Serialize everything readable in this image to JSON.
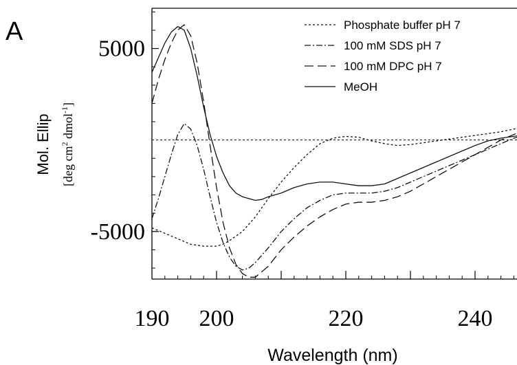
{
  "panel_label": "A",
  "chart_data": {
    "type": "line",
    "xlabel": "Wavelength (nm)",
    "ylabel_line1": "Mol. Ellip",
    "ylabel_line2_prefix": "[deg cm",
    "ylabel_line2_sup1": "2",
    "ylabel_line2_mid": " dmol",
    "ylabel_line2_sup2": "-1",
    "ylabel_line2_suffix": "]",
    "xlim": [
      190,
      250
    ],
    "ylim": [
      -7600,
      7200
    ],
    "x_tick_labels": [
      "190",
      "200",
      "220",
      "240"
    ],
    "x_major_ticks": [
      200,
      210,
      220,
      230,
      240
    ],
    "y_tick_labels": [
      "5000",
      "-5000"
    ],
    "y_major_ticks": [
      5000,
      -5000
    ],
    "zero_reference_line": true,
    "legend_position": "top-right",
    "series": [
      {
        "name": "Phosphate buffer pH 7",
        "dash": "dotted",
        "x": [
          190,
          192,
          194,
          196,
          198,
          200,
          201,
          202,
          204,
          206,
          208,
          210,
          212,
          214,
          216,
          218,
          220,
          222,
          224,
          226,
          228,
          230,
          232,
          234,
          236,
          238,
          240,
          242,
          244,
          246,
          248,
          250
        ],
        "y": [
          -4800,
          -5100,
          -5400,
          -5700,
          -5800,
          -5800,
          -5700,
          -5500,
          -5000,
          -4200,
          -3200,
          -2300,
          -1500,
          -800,
          -200,
          100,
          200,
          150,
          -50,
          -200,
          -300,
          -250,
          -150,
          -50,
          50,
          150,
          250,
          350,
          450,
          600,
          700,
          800
        ]
      },
      {
        "name": "100 mM SDS pH 7",
        "dash": "dash-dot",
        "x": [
          190,
          191,
          192,
          193,
          194,
          195,
          196,
          197,
          198,
          199,
          200,
          201,
          202,
          203,
          204,
          205,
          206,
          208,
          210,
          212,
          214,
          216,
          218,
          220,
          222,
          224,
          226,
          228,
          230,
          232,
          234,
          236,
          238,
          240,
          242,
          244,
          246,
          248,
          250
        ],
        "y": [
          -4300,
          -3200,
          -2000,
          -800,
          300,
          900,
          600,
          -300,
          -1600,
          -3100,
          -4500,
          -5600,
          -6400,
          -6900,
          -7100,
          -7000,
          -6700,
          -5900,
          -5000,
          -4300,
          -3700,
          -3300,
          -3000,
          -2900,
          -2900,
          -2900,
          -2800,
          -2600,
          -2300,
          -2000,
          -1700,
          -1400,
          -1100,
          -800,
          -500,
          -200,
          100,
          300,
          500
        ]
      },
      {
        "name": "100 mM DPC pH 7",
        "dash": "long-dash",
        "x": [
          190,
          191,
          192,
          193,
          194,
          195,
          196,
          197,
          198,
          199,
          200,
          201,
          202,
          203,
          204,
          205,
          206,
          208,
          210,
          212,
          214,
          216,
          218,
          220,
          222,
          224,
          226,
          228,
          230,
          232,
          234,
          236,
          238,
          240,
          242,
          244,
          246,
          248,
          250
        ],
        "y": [
          2000,
          3300,
          4400,
          5300,
          6000,
          6300,
          5700,
          4200,
          2100,
          -300,
          -2600,
          -4500,
          -5900,
          -6800,
          -7300,
          -7500,
          -7500,
          -6900,
          -6000,
          -5300,
          -4700,
          -4200,
          -3800,
          -3500,
          -3400,
          -3400,
          -3300,
          -3100,
          -2800,
          -2400,
          -2000,
          -1600,
          -1200,
          -800,
          -400,
          0,
          300,
          600,
          900
        ]
      },
      {
        "name": "MeOH",
        "dash": "solid",
        "x": [
          190,
          191,
          192,
          193,
          194,
          195,
          196,
          197,
          198,
          199,
          200,
          201,
          202,
          203,
          204,
          205,
          206,
          207,
          208,
          210,
          212,
          214,
          216,
          218,
          220,
          222,
          224,
          226,
          228,
          230,
          232,
          234,
          236,
          238,
          240,
          242,
          244,
          246,
          248,
          250
        ],
        "y": [
          3700,
          4500,
          5300,
          5900,
          6200,
          6000,
          5000,
          3500,
          1800,
          300,
          -900,
          -1800,
          -2500,
          -2900,
          -3100,
          -3200,
          -3300,
          -3250,
          -3100,
          -2900,
          -2600,
          -2400,
          -2300,
          -2300,
          -2400,
          -2500,
          -2500,
          -2400,
          -2100,
          -1800,
          -1500,
          -1200,
          -900,
          -600,
          -300,
          -50,
          100,
          200,
          300,
          400
        ]
      }
    ]
  }
}
